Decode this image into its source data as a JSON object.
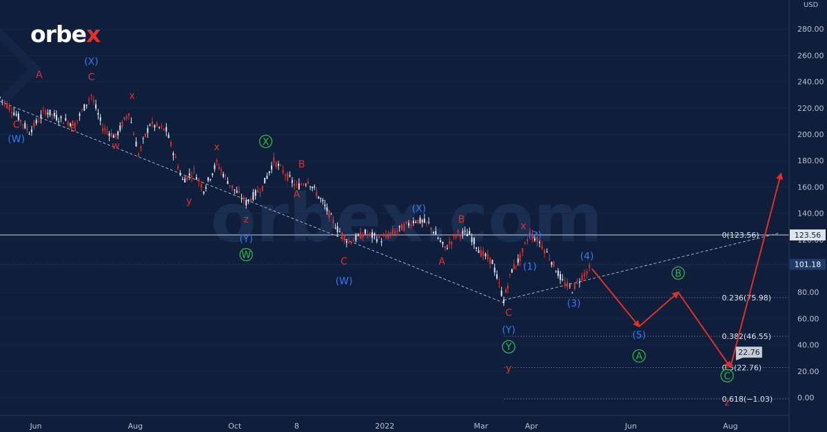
{
  "brand": {
    "prefix": "orbe",
    "accent": "x"
  },
  "watermark": "orbex.com",
  "currency_label": "USD",
  "colors": {
    "background": "#0f1e3b",
    "up_candle": "#dfe6f0",
    "down_candle": "#e0322b",
    "label_red": "#e0322b",
    "label_blue": "#2f7cf6",
    "label_green": "#35b54a",
    "arrow": "#e0322b",
    "axis_text": "#b8c2d0",
    "price_tag_bg": "#c8ccd3",
    "price_tag_text": "#10213f"
  },
  "chart_data": {
    "type": "candlestick",
    "title": "",
    "xlabel": "",
    "ylabel": "",
    "ylim": [
      -10,
      300
    ],
    "y_ticks": [
      0,
      20,
      40,
      60,
      80,
      100,
      120,
      140,
      160,
      180,
      200,
      220,
      240,
      260,
      280
    ],
    "y_tick_labels": [
      "0.00",
      "20.00",
      "40.00",
      "60.00",
      "80.00",
      "100.00",
      "120.00",
      "140.00",
      "160.00",
      "180.00",
      "200.00",
      "220.00",
      "240.00",
      "260.00",
      "280.00"
    ],
    "x_ticks": [
      "Jun",
      "Aug",
      "Oct",
      "8",
      "2022",
      "Mar",
      "Apr",
      "Jun",
      "Aug"
    ],
    "x_tick_dates": [
      "2021-06-01",
      "2021-08-01",
      "2021-10-01",
      "2021-11-08",
      "2022-01-01",
      "2022-03-01",
      "2022-04-01",
      "2022-06-01",
      "2022-08-01"
    ],
    "price_path": [
      [
        "2021-05-10",
        228
      ],
      [
        "2021-05-20",
        215
      ],
      [
        "2021-05-28",
        202
      ],
      [
        "2021-06-07",
        218
      ],
      [
        "2021-06-15",
        212
      ],
      [
        "2021-06-25",
        208
      ],
      [
        "2021-07-05",
        230
      ],
      [
        "2021-07-12",
        205
      ],
      [
        "2021-07-20",
        198
      ],
      [
        "2021-07-28",
        217
      ],
      [
        "2021-08-03",
        185
      ],
      [
        "2021-08-10",
        208
      ],
      [
        "2021-08-20",
        203
      ],
      [
        "2021-08-30",
        165
      ],
      [
        "2021-09-06",
        172
      ],
      [
        "2021-09-12",
        158
      ],
      [
        "2021-09-20",
        178
      ],
      [
        "2021-09-28",
        162
      ],
      [
        "2021-10-08",
        148
      ],
      [
        "2021-10-18",
        160
      ],
      [
        "2021-10-25",
        180
      ],
      [
        "2021-11-01",
        170
      ],
      [
        "2021-11-08",
        160
      ],
      [
        "2021-11-15",
        165
      ],
      [
        "2021-11-24",
        148
      ],
      [
        "2021-12-03",
        128
      ],
      [
        "2021-12-10",
        118
      ],
      [
        "2021-12-20",
        125
      ],
      [
        "2021-12-30",
        120
      ],
      [
        "2022-01-10",
        128
      ],
      [
        "2022-01-20",
        135
      ],
      [
        "2022-01-28",
        132
      ],
      [
        "2022-02-07",
        113
      ],
      [
        "2022-02-15",
        125
      ],
      [
        "2022-02-22",
        124
      ],
      [
        "2022-03-01",
        110
      ],
      [
        "2022-03-08",
        103
      ],
      [
        "2022-03-15",
        74
      ],
      [
        "2022-03-20",
        97
      ],
      [
        "2022-03-25",
        106
      ],
      [
        "2022-03-31",
        125
      ],
      [
        "2022-04-06",
        118
      ],
      [
        "2022-04-12",
        107
      ],
      [
        "2022-04-20",
        88
      ],
      [
        "2022-04-26",
        82
      ],
      [
        "2022-05-02",
        92
      ],
      [
        "2022-05-08",
        100
      ]
    ],
    "current_price": 101.18,
    "current_price_label": "101.18",
    "resistance_price": 123.56,
    "resistance_label": "123.56",
    "trendlines": [
      {
        "style": "dashed",
        "points": [
          [
            "2021-05-10",
            225
          ],
          [
            "2022-03-15",
            72
          ]
        ]
      },
      {
        "style": "dashed",
        "points": [
          [
            "2022-03-15",
            74
          ],
          [
            "2022-08-31",
            125
          ]
        ]
      }
    ],
    "fibonacci": [
      {
        "level": 0,
        "price": 123.56,
        "label": "0(123.56)"
      },
      {
        "level": 0.236,
        "price": 75.98,
        "label": "0.236(75.98)"
      },
      {
        "level": 0.382,
        "price": 46.55,
        "label": "0.382(46.55)"
      },
      {
        "level": 0.5,
        "price": 22.76,
        "label": "0.5(22.76)"
      },
      {
        "level": 0.618,
        "price": -1.03,
        "label": "0.618(−1.03)"
      }
    ],
    "fib_start_date": "2022-03-15",
    "fib_label_date": "2022-07-20",
    "forecast_path": [
      [
        "2022-05-08",
        98
      ],
      [
        "2022-06-06",
        54
      ],
      [
        "2022-06-30",
        80
      ],
      [
        "2022-08-01",
        23
      ],
      [
        "2022-09-01",
        170
      ]
    ],
    "target_label": "22.76",
    "wave_labels": [
      {
        "text": "(W)",
        "date": "2021-05-20",
        "price": 194,
        "color": "blue"
      },
      {
        "text": "C",
        "date": "2021-05-20",
        "price": 205,
        "color": "red"
      },
      {
        "text": "A",
        "date": "2021-06-03",
        "price": 243,
        "color": "red"
      },
      {
        "text": "B",
        "date": "2021-06-24",
        "price": 202,
        "color": "red"
      },
      {
        "text": "(X)",
        "date": "2021-07-05",
        "price": 253,
        "color": "blue"
      },
      {
        "text": "C",
        "date": "2021-07-05",
        "price": 241,
        "color": "red"
      },
      {
        "text": "w",
        "date": "2021-07-20",
        "price": 189,
        "color": "red"
      },
      {
        "text": "x",
        "date": "2021-07-30",
        "price": 227,
        "color": "red"
      },
      {
        "text": "x",
        "date": "2021-09-20",
        "price": 188,
        "color": "red"
      },
      {
        "text": "y",
        "date": "2021-09-03",
        "price": 147,
        "color": "red"
      },
      {
        "text": "X",
        "date": "2021-10-20",
        "price": 192,
        "color": "green",
        "circled": true
      },
      {
        "text": "z",
        "date": "2021-10-08",
        "price": 133,
        "color": "red"
      },
      {
        "text": "(Y)",
        "date": "2021-10-08",
        "price": 118,
        "color": "blue"
      },
      {
        "text": "W",
        "date": "2021-10-08",
        "price": 106,
        "color": "green",
        "circled": true
      },
      {
        "text": "B",
        "date": "2021-11-11",
        "price": 175,
        "color": "red"
      },
      {
        "text": "A",
        "date": "2021-11-08",
        "price": 152,
        "color": "red"
      },
      {
        "text": "C",
        "date": "2021-12-07",
        "price": 101,
        "color": "red"
      },
      {
        "text": "(W)",
        "date": "2021-12-07",
        "price": 86,
        "color": "blue"
      },
      {
        "text": "(X)",
        "date": "2022-01-22",
        "price": 141,
        "color": "blue"
      },
      {
        "text": "B",
        "date": "2022-02-17",
        "price": 133,
        "color": "red"
      },
      {
        "text": "A",
        "date": "2022-02-05",
        "price": 101,
        "color": "red"
      },
      {
        "text": "x",
        "date": "2022-03-27",
        "price": 128,
        "color": "red"
      },
      {
        "text": "(2)",
        "date": "2022-04-03",
        "price": 121,
        "color": "blue"
      },
      {
        "text": "(1)",
        "date": "2022-03-31",
        "price": 97,
        "color": "blue"
      },
      {
        "text": "(4)",
        "date": "2022-05-05",
        "price": 105,
        "color": "blue"
      },
      {
        "text": "(3)",
        "date": "2022-04-27",
        "price": 69,
        "color": "blue"
      },
      {
        "text": "C",
        "date": "2022-03-18",
        "price": 62,
        "color": "red"
      },
      {
        "text": "(Y)",
        "date": "2022-03-18",
        "price": 49,
        "color": "blue"
      },
      {
        "text": "Y",
        "date": "2022-03-18",
        "price": 36,
        "color": "green",
        "circled": true
      },
      {
        "text": "y",
        "date": "2022-03-18",
        "price": 20,
        "color": "red"
      },
      {
        "text": "(5)",
        "date": "2022-06-06",
        "price": 45,
        "color": "blue"
      },
      {
        "text": "A",
        "date": "2022-06-06",
        "price": 29,
        "color": "green",
        "circled": true
      },
      {
        "text": "B",
        "date": "2022-06-30",
        "price": 92,
        "color": "green",
        "circled": true
      },
      {
        "text": "C",
        "date": "2022-07-30",
        "price": 14,
        "color": "green",
        "circled": true
      },
      {
        "text": "z",
        "date": "2022-07-30",
        "price": -6,
        "color": "red"
      }
    ]
  }
}
